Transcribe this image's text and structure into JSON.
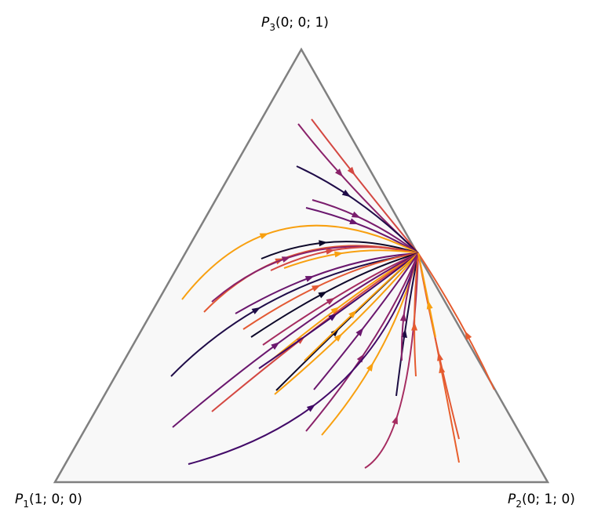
{
  "vertices": [
    {
      "name": "P",
      "index": "1",
      "coords": "(1; 0; 0)"
    },
    {
      "name": "P",
      "index": "2",
      "coords": "(0; 1; 0)"
    },
    {
      "name": "P",
      "index": "3",
      "coords": "(0; 0; 1)"
    }
  ]
}
